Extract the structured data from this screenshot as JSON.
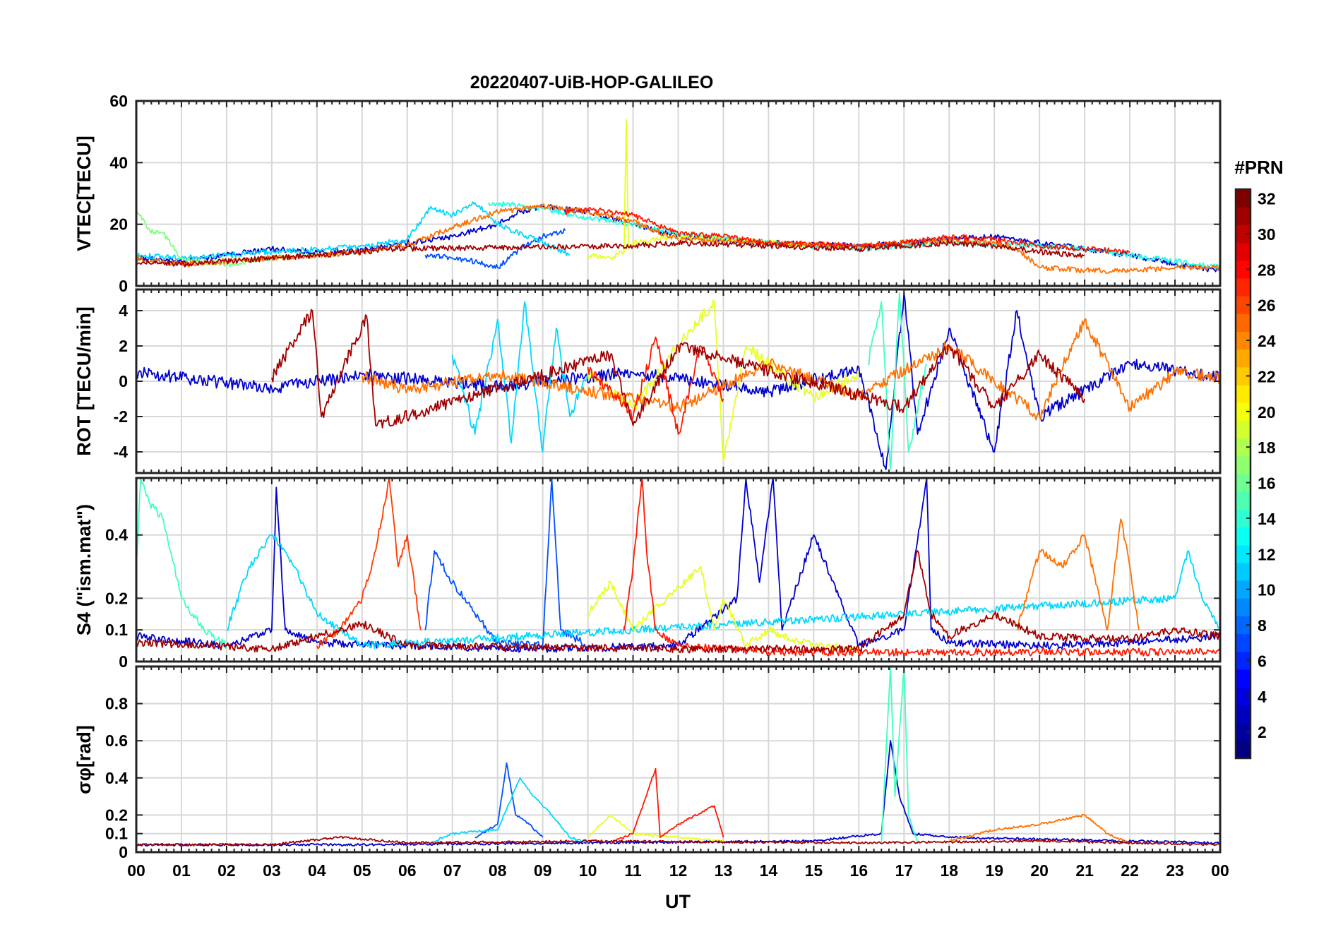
{
  "figure": {
    "title": "20220407-UiB-HOP-GALILEO",
    "xlabel": "UT",
    "x_ticks": [
      "00",
      "01",
      "02",
      "03",
      "04",
      "05",
      "06",
      "07",
      "08",
      "09",
      "10",
      "11",
      "12",
      "13",
      "14",
      "15",
      "16",
      "17",
      "18",
      "19",
      "20",
      "21",
      "22",
      "23",
      "00"
    ]
  },
  "colorbar": {
    "label": "#PRN",
    "ticks": [
      "2",
      "4",
      "6",
      "8",
      "10",
      "12",
      "14",
      "16",
      "18",
      "20",
      "22",
      "24",
      "26",
      "28",
      "30",
      "32"
    ],
    "range": [
      1,
      32
    ],
    "colormap": "jet"
  },
  "chart_data": [
    {
      "type": "line",
      "panel": "VTEC",
      "ylabel": "VTEC[TECU]",
      "xlim": [
        0,
        24
      ],
      "ylim": [
        0,
        60
      ],
      "yticks": [
        0,
        20,
        40,
        60
      ],
      "y_tick_labels": [
        "0",
        "20",
        "40",
        "60"
      ],
      "grid": true,
      "series": [
        {
          "prn": 2,
          "color": "#0000cc",
          "x": [
            0,
            1,
            2,
            3,
            4,
            5,
            6,
            7,
            8,
            8.5,
            9,
            10,
            11,
            12,
            14,
            16,
            17,
            18,
            19,
            20,
            21,
            22,
            23,
            24
          ],
          "y": [
            9,
            8,
            10,
            12,
            11,
            12,
            14,
            16,
            20,
            24,
            26,
            24,
            20,
            16,
            14,
            13,
            14,
            15,
            16,
            14,
            12,
            10,
            7,
            5
          ]
        },
        {
          "prn": 7,
          "color": "#0050ff",
          "x": [
            6.4,
            7,
            7.5,
            8,
            8.5,
            9,
            9.5
          ],
          "y": [
            10,
            9,
            8,
            6,
            12,
            16,
            18
          ]
        },
        {
          "prn": 12,
          "color": "#00d8ff",
          "x": [
            0,
            1,
            2,
            3,
            4,
            5,
            6,
            6.5,
            7,
            7.5,
            8,
            9,
            9.6
          ],
          "y": [
            10,
            9,
            10,
            11,
            12,
            13,
            15,
            25,
            23,
            27,
            20,
            14,
            10
          ]
        },
        {
          "prn": 13,
          "color": "#20ffe0",
          "x": [
            7.8,
            8.5,
            9,
            10,
            11,
            12,
            14,
            16,
            18,
            20,
            21,
            22,
            23,
            24
          ],
          "y": [
            27,
            26,
            25,
            22,
            20,
            17,
            14,
            12,
            14,
            13,
            12,
            10,
            8,
            6
          ]
        },
        {
          "prn": 17,
          "color": "#80ff80",
          "x": [
            0,
            0.3,
            0.6,
            1,
            2,
            3,
            4
          ],
          "y": [
            25,
            18,
            17,
            9,
            7,
            9,
            10
          ]
        },
        {
          "prn": 20,
          "color": "#e8ff20",
          "x": [
            10,
            10.5,
            10.8,
            10.85,
            10.9,
            11,
            12,
            13,
            14,
            15
          ],
          "y": [
            10,
            9,
            11,
            54,
            12,
            14,
            16,
            15,
            14,
            13
          ]
        },
        {
          "prn": 25,
          "color": "#ff7000",
          "x": [
            0,
            1,
            2,
            3,
            4,
            5,
            6,
            7,
            8,
            9,
            10,
            11,
            12,
            14,
            16,
            18,
            19,
            19.5,
            20,
            21,
            22,
            23,
            24
          ],
          "y": [
            9,
            7,
            8,
            9,
            10,
            11,
            13,
            19,
            24,
            26,
            24,
            21,
            15,
            14,
            13,
            15,
            14,
            12,
            6,
            5,
            5,
            6,
            6
          ]
        },
        {
          "prn": 29,
          "color": "#ff1800",
          "x": [
            9.5,
            10,
            10.5,
            11,
            11.5,
            12,
            13,
            14,
            16,
            17,
            18,
            19,
            20,
            21,
            22
          ],
          "y": [
            24,
            25,
            24,
            23,
            20,
            17,
            16,
            14,
            13,
            14,
            16,
            15,
            13,
            12,
            11
          ]
        },
        {
          "prn": 31,
          "color": "#a00000",
          "x": [
            0,
            1,
            2,
            3,
            4,
            5,
            5.5,
            11,
            12,
            14,
            16,
            17,
            18,
            19,
            20,
            21
          ],
          "y": [
            8,
            7,
            8,
            9,
            10,
            11,
            12,
            13,
            14,
            13,
            12,
            13,
            14,
            13,
            11,
            10
          ]
        }
      ]
    },
    {
      "type": "line",
      "panel": "ROT",
      "ylabel": "ROT [TECU/min]",
      "xlim": [
        0,
        24
      ],
      "ylim": [
        -5.2,
        5.2
      ],
      "yticks": [
        -4,
        -2,
        0,
        2,
        4
      ],
      "y_tick_labels": [
        "-4",
        "-2",
        "0",
        "2",
        "4"
      ],
      "grid": true,
      "series": [
        {
          "prn": 2,
          "color": "#0000cc",
          "x": [
            0,
            3,
            5,
            8,
            11,
            14,
            16,
            16.6,
            17,
            17.3,
            18,
            19,
            19.5,
            20,
            22,
            24
          ],
          "y": [
            0.5,
            -0.4,
            0.4,
            -0.3,
            0.5,
            -0.6,
            0.8,
            -5.0,
            5.0,
            -3.0,
            3.0,
            -4.0,
            4.0,
            -2.0,
            1.0,
            0.2
          ]
        },
        {
          "prn": 12,
          "color": "#00d8ff",
          "x": [
            7,
            7.5,
            8,
            8.3,
            8.6,
            9,
            9.3,
            9.6,
            10
          ],
          "y": [
            1.5,
            -3.0,
            3.5,
            -3.5,
            4.5,
            -4.0,
            3.0,
            -2.0,
            0.5
          ]
        },
        {
          "prn": 16,
          "color": "#40ffc0",
          "x": [
            16.2,
            16.5,
            16.7,
            16.9,
            17.1,
            17.5
          ],
          "y": [
            1.0,
            4.5,
            -5.0,
            5.0,
            -4.0,
            1.0
          ]
        },
        {
          "prn": 20,
          "color": "#e8ff20",
          "x": [
            10,
            11,
            12,
            12.8,
            13,
            13.5,
            15,
            16
          ],
          "y": [
            0.5,
            -1.5,
            2.0,
            4.5,
            -4.5,
            2.0,
            -1.0,
            0.5
          ]
        },
        {
          "prn": 25,
          "color": "#ff7000",
          "x": [
            5,
            6,
            8,
            12,
            14,
            16,
            18,
            20,
            21,
            22,
            23,
            24
          ],
          "y": [
            0.3,
            -0.5,
            0.4,
            -1.5,
            1.0,
            -0.8,
            2.0,
            -2.0,
            3.5,
            -1.5,
            0.5,
            0.2
          ]
        },
        {
          "prn": 29,
          "color": "#ff1800",
          "x": [
            10,
            11,
            11.5,
            12,
            12.5,
            13
          ],
          "y": [
            0.8,
            -2.0,
            2.5,
            -3.0,
            2.0,
            -1.0
          ]
        },
        {
          "prn": 31,
          "color": "#a00000",
          "x": [
            3,
            3.9,
            4.1,
            5.1,
            5.3,
            10.5,
            11,
            12,
            17,
            18,
            19,
            20,
            21
          ],
          "y": [
            0.2,
            4.0,
            -2.0,
            3.7,
            -2.5,
            1.5,
            -2.5,
            2.0,
            -1.5,
            2.0,
            -1.5,
            1.5,
            -1.0
          ]
        }
      ]
    },
    {
      "type": "line",
      "panel": "S4",
      "ylabel": "S4 (\"ism.mat\")",
      "xlim": [
        0,
        24
      ],
      "ylim": [
        0,
        0.58
      ],
      "yticks": [
        0,
        0.1,
        0.2,
        0.4
      ],
      "y_tick_labels": [
        "0",
        "0.1",
        "0.2",
        "0.4"
      ],
      "grid": true,
      "series": [
        {
          "prn": 2,
          "color": "#0000cc",
          "x": [
            0,
            2,
            3,
            3.1,
            3.3,
            4,
            6,
            9,
            12,
            13.3,
            13.5,
            13.8,
            14.1,
            14.3,
            15,
            16,
            17,
            17.5,
            17.6,
            18,
            20,
            22,
            24
          ],
          "y": [
            0.08,
            0.05,
            0.1,
            0.55,
            0.1,
            0.06,
            0.05,
            0.04,
            0.05,
            0.2,
            0.58,
            0.25,
            0.58,
            0.1,
            0.4,
            0.05,
            0.1,
            0.58,
            0.1,
            0.06,
            0.05,
            0.06,
            0.08
          ]
        },
        {
          "prn": 7,
          "color": "#0050ff",
          "x": [
            6.4,
            6.6,
            7,
            7.5,
            8,
            9,
            9.2,
            9.4,
            10
          ],
          "y": [
            0.1,
            0.35,
            0.25,
            0.15,
            0.06,
            0.05,
            0.58,
            0.1,
            0.05
          ]
        },
        {
          "prn": 12,
          "color": "#00d8ff",
          "x": [
            2,
            2.5,
            3,
            3.5,
            4,
            5,
            23,
            23.3,
            23.6,
            24
          ],
          "y": [
            0.1,
            0.3,
            0.4,
            0.3,
            0.15,
            0.05,
            0.2,
            0.35,
            0.2,
            0.1
          ]
        },
        {
          "prn": 16,
          "color": "#40ffc0",
          "x": [
            0,
            0.1,
            0.3,
            0.6,
            1,
            1.5,
            2
          ],
          "y": [
            0.3,
            0.58,
            0.5,
            0.45,
            0.2,
            0.1,
            0.05
          ]
        },
        {
          "prn": 20,
          "color": "#e8ff20",
          "x": [
            10,
            10.5,
            11,
            12.5,
            12.8,
            13,
            13.5,
            14,
            15,
            16
          ],
          "y": [
            0.15,
            0.25,
            0.1,
            0.3,
            0.1,
            0.2,
            0.05,
            0.1,
            0.05,
            0.04
          ]
        },
        {
          "prn": 25,
          "color": "#ff7000",
          "x": [
            19.5,
            20,
            20.5,
            21,
            21.5,
            21.8,
            22,
            22.2
          ],
          "y": [
            0.1,
            0.35,
            0.3,
            0.4,
            0.1,
            0.45,
            0.3,
            0.1
          ]
        },
        {
          "prn": 27,
          "color": "#ff3800",
          "x": [
            4,
            4.5,
            5,
            5.3,
            5.6,
            5.8,
            6,
            6.3
          ],
          "y": [
            0.05,
            0.1,
            0.2,
            0.35,
            0.58,
            0.3,
            0.4,
            0.1
          ]
        },
        {
          "prn": 29,
          "color": "#ff1800",
          "x": [
            10.8,
            11,
            11.2,
            11.3,
            11.5,
            12,
            14,
            18,
            24
          ],
          "y": [
            0.1,
            0.3,
            0.58,
            0.35,
            0.1,
            0.05,
            0.03,
            0.03,
            0.03
          ]
        },
        {
          "prn": 31,
          "color": "#a00000",
          "x": [
            0,
            3,
            4,
            5,
            6,
            12,
            16,
            17,
            17.3,
            17.6,
            18,
            19,
            20,
            22,
            23,
            24
          ],
          "y": [
            0.06,
            0.04,
            0.08,
            0.12,
            0.05,
            0.04,
            0.04,
            0.15,
            0.35,
            0.15,
            0.08,
            0.15,
            0.08,
            0.07,
            0.1,
            0.08
          ]
        }
      ]
    },
    {
      "type": "line",
      "panel": "sigma_phi",
      "ylabel": "σφ[rad]",
      "xlim": [
        0,
        24
      ],
      "ylim": [
        0,
        1.0
      ],
      "yticks": [
        0,
        0.1,
        0.2,
        0.4,
        0.6,
        0.8
      ],
      "y_tick_labels": [
        "0",
        "0.1",
        "0.2",
        "0.4",
        "0.6",
        "0.8"
      ],
      "grid": true,
      "series": [
        {
          "prn": 2,
          "color": "#0000cc",
          "x": [
            0,
            5,
            10,
            15,
            16.5,
            16.7,
            16.9,
            17.2,
            18,
            24
          ],
          "y": [
            0.04,
            0.04,
            0.05,
            0.06,
            0.1,
            0.6,
            0.3,
            0.1,
            0.08,
            0.05
          ]
        },
        {
          "prn": 7,
          "color": "#0050ff",
          "x": [
            7.5,
            8,
            8.2,
            8.4,
            8.7,
            9
          ],
          "y": [
            0.08,
            0.15,
            0.48,
            0.2,
            0.15,
            0.08
          ]
        },
        {
          "prn": 12,
          "color": "#00d8ff",
          "x": [
            6.5,
            7,
            8,
            8.5,
            8.8,
            9.2,
            9.6,
            10
          ],
          "y": [
            0.05,
            0.1,
            0.12,
            0.4,
            0.3,
            0.2,
            0.08,
            0.05
          ]
        },
        {
          "prn": 16,
          "color": "#40ffc0",
          "x": [
            16.5,
            16.7,
            16.8,
            17.0,
            17.1,
            17.3
          ],
          "y": [
            0.05,
            1.0,
            0.3,
            1.0,
            0.2,
            0.05
          ]
        },
        {
          "prn": 20,
          "color": "#e8ff20",
          "x": [
            10,
            10.5,
            11,
            12,
            13
          ],
          "y": [
            0.08,
            0.2,
            0.1,
            0.08,
            0.06
          ]
        },
        {
          "prn": 25,
          "color": "#ff7000",
          "x": [
            18,
            19,
            20,
            21,
            21.5,
            22
          ],
          "y": [
            0.06,
            0.12,
            0.15,
            0.2,
            0.1,
            0.05
          ]
        },
        {
          "prn": 29,
          "color": "#ff1800",
          "x": [
            10.5,
            11,
            11.5,
            11.6,
            12,
            12.8,
            13
          ],
          "y": [
            0.05,
            0.1,
            0.45,
            0.08,
            0.15,
            0.25,
            0.08
          ]
        },
        {
          "prn": 31,
          "color": "#a00000",
          "x": [
            0,
            3,
            4.5,
            6,
            10,
            16,
            20,
            24
          ],
          "y": [
            0.04,
            0.04,
            0.08,
            0.05,
            0.06,
            0.05,
            0.06,
            0.04
          ]
        }
      ]
    }
  ]
}
